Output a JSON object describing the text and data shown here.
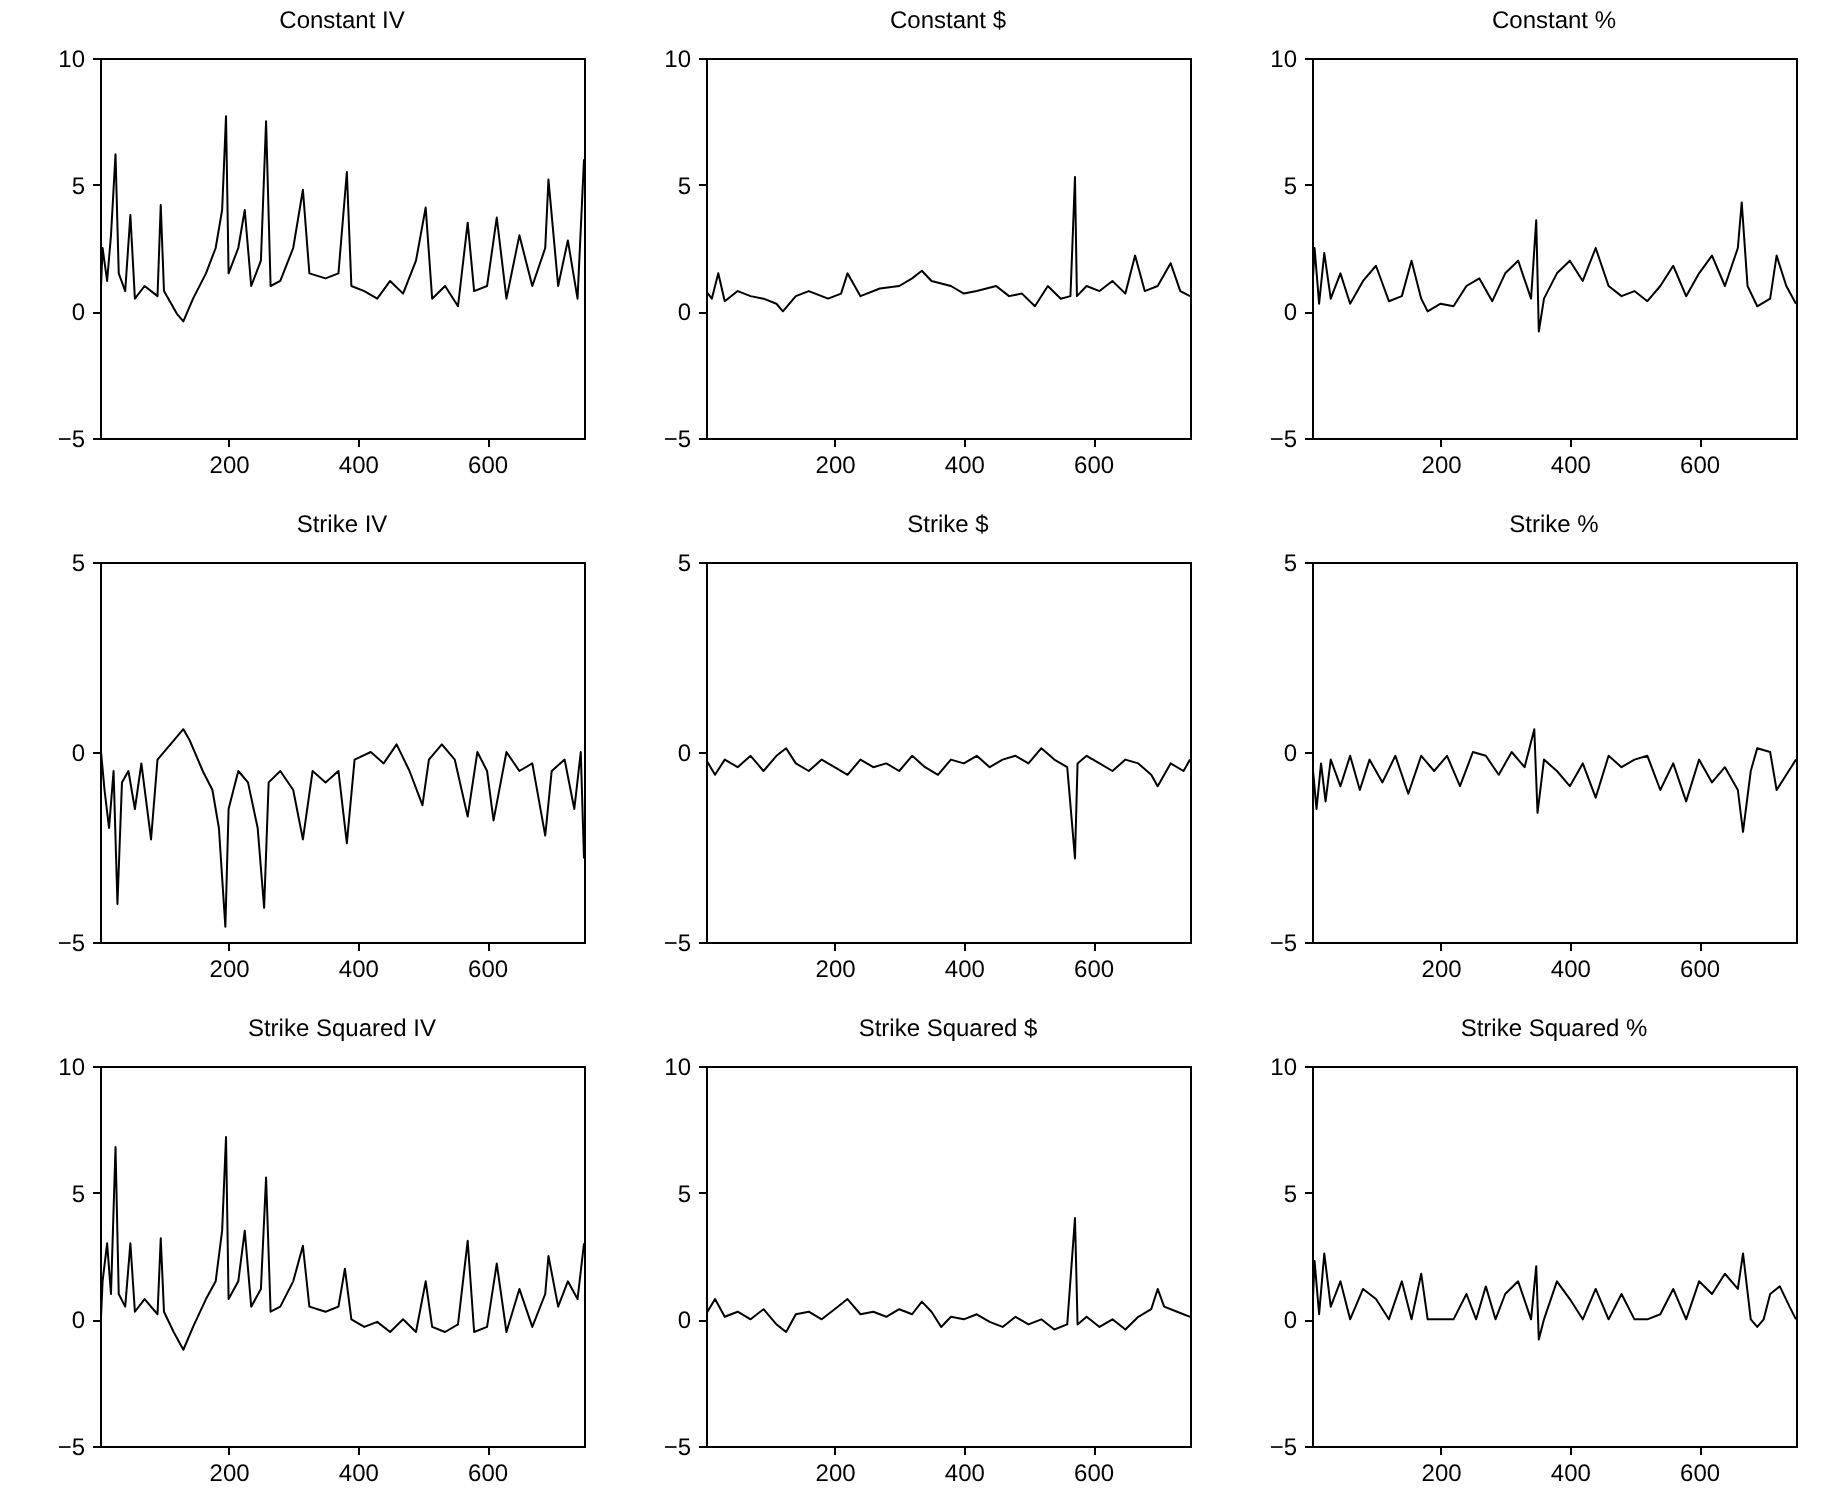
{
  "chart_data": [
    {
      "type": "line",
      "title": "Constant IV",
      "xlim": [
        1,
        750
      ],
      "xticks": [
        200,
        400,
        600
      ],
      "ylim": [
        -5,
        10
      ],
      "yticks": [
        -5,
        0,
        5,
        10
      ],
      "x": [
        1,
        5,
        12,
        18,
        25,
        30,
        40,
        48,
        55,
        70,
        90,
        95,
        100,
        120,
        130,
        145,
        165,
        180,
        190,
        196,
        200,
        215,
        225,
        235,
        250,
        258,
        265,
        280,
        300,
        315,
        325,
        350,
        370,
        383,
        390,
        410,
        430,
        450,
        470,
        490,
        505,
        515,
        535,
        555,
        570,
        580,
        600,
        615,
        630,
        650,
        670,
        690,
        695,
        710,
        725,
        740,
        750
      ],
      "series": [
        {
          "color": "#000000",
          "values": [
            0,
            2.5,
            1.2,
            3.0,
            6.2,
            1.5,
            0.8,
            3.8,
            0.5,
            1.0,
            0.6,
            4.2,
            0.8,
            -0.1,
            -0.4,
            0.5,
            1.5,
            2.5,
            4,
            7.7,
            1.5,
            2.5,
            4.0,
            1.0,
            2.0,
            7.5,
            1.0,
            1.2,
            2.5,
            4.8,
            1.5,
            1.3,
            1.5,
            5.5,
            1.0,
            0.8,
            0.5,
            1.2,
            0.7,
            2.0,
            4.1,
            0.5,
            1.0,
            0.2,
            3.5,
            0.8,
            1.0,
            3.7,
            0.5,
            3.0,
            1.0,
            2.5,
            5.2,
            1.0,
            2.8,
            0.5,
            6.0
          ]
        }
      ]
    },
    {
      "type": "line",
      "title": "Constant $",
      "xlim": [
        1,
        750
      ],
      "xticks": [
        200,
        400,
        600
      ],
      "ylim": [
        -5,
        10
      ],
      "yticks": [
        -5,
        0,
        5,
        10
      ],
      "x": [
        1,
        10,
        20,
        30,
        50,
        70,
        90,
        110,
        120,
        140,
        160,
        190,
        210,
        220,
        240,
        270,
        300,
        320,
        335,
        350,
        380,
        400,
        420,
        450,
        470,
        490,
        510,
        530,
        550,
        565,
        572,
        575,
        590,
        610,
        630,
        650,
        665,
        680,
        700,
        720,
        735,
        750
      ],
      "series": [
        {
          "color": "#000000",
          "values": [
            0.8,
            0.5,
            1.5,
            0.4,
            0.8,
            0.6,
            0.5,
            0.3,
            0.0,
            0.6,
            0.8,
            0.5,
            0.7,
            1.5,
            0.6,
            0.9,
            1.0,
            1.3,
            1.6,
            1.2,
            1.0,
            0.7,
            0.8,
            1.0,
            0.6,
            0.7,
            0.2,
            1.0,
            0.5,
            0.6,
            5.3,
            0.6,
            1.0,
            0.8,
            1.2,
            0.7,
            2.2,
            0.8,
            1.0,
            1.9,
            0.8,
            0.6
          ]
        }
      ]
    },
    {
      "type": "line",
      "title": "Constant %",
      "xlim": [
        1,
        750
      ],
      "xticks": [
        200,
        400,
        600
      ],
      "ylim": [
        -5,
        10
      ],
      "yticks": [
        -5,
        0,
        5,
        10
      ],
      "x": [
        1,
        5,
        12,
        20,
        30,
        45,
        60,
        80,
        100,
        120,
        140,
        155,
        170,
        180,
        200,
        220,
        240,
        260,
        280,
        300,
        320,
        340,
        348,
        352,
        360,
        380,
        400,
        420,
        440,
        460,
        480,
        500,
        520,
        540,
        560,
        580,
        600,
        620,
        640,
        660,
        666,
        675,
        690,
        710,
        720,
        735,
        750
      ],
      "series": [
        {
          "color": "#000000",
          "values": [
            0.6,
            2.5,
            0.3,
            2.3,
            0.5,
            1.5,
            0.3,
            1.2,
            1.8,
            0.4,
            0.6,
            2.0,
            0.5,
            0.0,
            0.3,
            0.2,
            1.0,
            1.3,
            0.4,
            1.5,
            2.0,
            0.5,
            3.6,
            -0.8,
            0.5,
            1.5,
            2.0,
            1.2,
            2.5,
            1.0,
            0.6,
            0.8,
            0.4,
            1.0,
            1.8,
            0.6,
            1.5,
            2.2,
            1.0,
            2.5,
            4.3,
            1.0,
            0.2,
            0.5,
            2.2,
            1.0,
            0.3
          ]
        }
      ]
    },
    {
      "type": "line",
      "title": "Strike IV",
      "xlim": [
        1,
        750
      ],
      "xticks": [
        200,
        400,
        600
      ],
      "ylim": [
        -5,
        5
      ],
      "yticks": [
        -5,
        0,
        5
      ],
      "x": [
        1,
        8,
        15,
        22,
        28,
        35,
        45,
        55,
        65,
        80,
        90,
        110,
        130,
        140,
        160,
        175,
        185,
        195,
        200,
        215,
        230,
        245,
        255,
        262,
        280,
        300,
        315,
        330,
        350,
        370,
        383,
        395,
        420,
        440,
        460,
        480,
        500,
        510,
        530,
        550,
        570,
        585,
        600,
        610,
        630,
        650,
        670,
        690,
        700,
        720,
        735,
        745,
        750
      ],
      "series": [
        {
          "color": "#000000",
          "values": [
            0.3,
            -1.0,
            -2.0,
            -0.5,
            -4.0,
            -0.8,
            -0.5,
            -1.5,
            -0.3,
            -2.3,
            -0.2,
            0.2,
            0.6,
            0.3,
            -0.5,
            -1.0,
            -2.0,
            -4.6,
            -1.5,
            -0.5,
            -0.8,
            -2.0,
            -4.1,
            -0.8,
            -0.5,
            -1.0,
            -2.3,
            -0.5,
            -0.8,
            -0.5,
            -2.4,
            -0.2,
            0.0,
            -0.3,
            0.2,
            -0.5,
            -1.4,
            -0.2,
            0.2,
            -0.2,
            -1.7,
            0.0,
            -0.5,
            -1.8,
            0.0,
            -0.5,
            -0.3,
            -2.2,
            -0.5,
            -0.2,
            -1.5,
            0.0,
            -2.8
          ]
        }
      ]
    },
    {
      "type": "line",
      "title": "Strike $",
      "xlim": [
        1,
        750
      ],
      "xticks": [
        200,
        400,
        600
      ],
      "ylim": [
        -5,
        5
      ],
      "yticks": [
        -5,
        0,
        5
      ],
      "x": [
        1,
        15,
        30,
        50,
        70,
        90,
        110,
        125,
        140,
        160,
        180,
        200,
        220,
        240,
        260,
        280,
        300,
        320,
        340,
        360,
        380,
        400,
        420,
        440,
        460,
        480,
        500,
        520,
        540,
        560,
        572,
        576,
        590,
        610,
        630,
        650,
        670,
        690,
        700,
        720,
        740,
        750
      ],
      "series": [
        {
          "color": "#000000",
          "values": [
            -0.2,
            -0.6,
            -0.2,
            -0.4,
            -0.1,
            -0.5,
            -0.1,
            0.1,
            -0.3,
            -0.5,
            -0.2,
            -0.4,
            -0.6,
            -0.2,
            -0.4,
            -0.3,
            -0.5,
            -0.1,
            -0.4,
            -0.6,
            -0.2,
            -0.3,
            -0.1,
            -0.4,
            -0.2,
            -0.1,
            -0.3,
            0.1,
            -0.2,
            -0.4,
            -2.8,
            -0.3,
            -0.1,
            -0.3,
            -0.5,
            -0.2,
            -0.3,
            -0.6,
            -0.9,
            -0.3,
            -0.5,
            -0.2
          ]
        }
      ]
    },
    {
      "type": "line",
      "title": "Strike %",
      "xlim": [
        1,
        750
      ],
      "xticks": [
        200,
        400,
        600
      ],
      "ylim": [
        -5,
        5
      ],
      "yticks": [
        -5,
        0,
        5
      ],
      "x": [
        1,
        8,
        15,
        22,
        30,
        45,
        60,
        75,
        90,
        110,
        130,
        150,
        170,
        190,
        210,
        230,
        250,
        270,
        290,
        310,
        330,
        345,
        350,
        360,
        380,
        400,
        420,
        440,
        460,
        480,
        500,
        520,
        540,
        560,
        580,
        600,
        620,
        640,
        660,
        668,
        680,
        690,
        710,
        720,
        735,
        750
      ],
      "series": [
        {
          "color": "#000000",
          "values": [
            -0.2,
            -1.5,
            -0.3,
            -1.3,
            -0.2,
            -0.9,
            -0.1,
            -1.0,
            -0.2,
            -0.8,
            -0.1,
            -1.1,
            -0.1,
            -0.5,
            -0.1,
            -0.9,
            0.0,
            -0.1,
            -0.6,
            0.0,
            -0.4,
            0.6,
            -1.6,
            -0.2,
            -0.5,
            -0.9,
            -0.3,
            -1.2,
            -0.1,
            -0.4,
            -0.2,
            -0.1,
            -1.0,
            -0.3,
            -1.3,
            -0.2,
            -0.8,
            -0.4,
            -1.0,
            -2.1,
            -0.5,
            0.1,
            0.0,
            -1.0,
            -0.6,
            -0.2
          ]
        }
      ]
    },
    {
      "type": "line",
      "title": "Strike Squared IV",
      "xlim": [
        1,
        750
      ],
      "xticks": [
        200,
        400,
        600
      ],
      "ylim": [
        -5,
        10
      ],
      "yticks": [
        -5,
        0,
        5,
        10
      ],
      "x": [
        1,
        5,
        12,
        18,
        25,
        30,
        40,
        48,
        55,
        70,
        90,
        95,
        100,
        115,
        130,
        145,
        165,
        180,
        190,
        196,
        200,
        215,
        225,
        235,
        250,
        258,
        265,
        280,
        300,
        315,
        325,
        350,
        370,
        380,
        390,
        410,
        430,
        450,
        470,
        490,
        505,
        515,
        535,
        555,
        570,
        580,
        600,
        615,
        630,
        650,
        670,
        690,
        695,
        710,
        725,
        740,
        750
      ],
      "series": [
        {
          "color": "#000000",
          "values": [
            -0.8,
            1.5,
            3.0,
            1.0,
            6.8,
            1.0,
            0.5,
            3.0,
            0.3,
            0.8,
            0.2,
            3.2,
            0.3,
            -0.5,
            -1.2,
            -0.3,
            0.8,
            1.5,
            3.5,
            7.2,
            0.8,
            1.5,
            3.5,
            0.5,
            1.2,
            5.6,
            0.3,
            0.5,
            1.5,
            2.9,
            0.5,
            0.3,
            0.5,
            2.0,
            0.0,
            -0.3,
            -0.1,
            -0.5,
            0.0,
            -0.5,
            1.5,
            -0.3,
            -0.5,
            -0.2,
            3.1,
            -0.5,
            -0.3,
            2.2,
            -0.5,
            1.2,
            -0.3,
            1.0,
            2.5,
            0.5,
            1.5,
            0.8,
            3.0
          ]
        }
      ]
    },
    {
      "type": "line",
      "title": "Strike Squared $",
      "xlim": [
        1,
        750
      ],
      "xticks": [
        200,
        400,
        600
      ],
      "ylim": [
        -5,
        10
      ],
      "yticks": [
        -5,
        0,
        5,
        10
      ],
      "x": [
        1,
        15,
        30,
        50,
        70,
        90,
        110,
        125,
        140,
        160,
        180,
        200,
        220,
        240,
        260,
        280,
        300,
        320,
        335,
        350,
        365,
        380,
        400,
        420,
        440,
        460,
        480,
        500,
        520,
        540,
        560,
        572,
        576,
        590,
        610,
        630,
        650,
        670,
        690,
        700,
        710,
        730,
        750
      ],
      "series": [
        {
          "color": "#000000",
          "values": [
            0.2,
            0.8,
            0.1,
            0.3,
            0.0,
            0.4,
            -0.2,
            -0.5,
            0.2,
            0.3,
            0.0,
            0.4,
            0.8,
            0.2,
            0.3,
            0.1,
            0.4,
            0.2,
            0.7,
            0.3,
            -0.3,
            0.1,
            0.0,
            0.2,
            -0.1,
            -0.3,
            0.1,
            -0.2,
            0.0,
            -0.4,
            -0.2,
            4.0,
            -0.2,
            0.1,
            -0.3,
            0.0,
            -0.4,
            0.1,
            0.4,
            1.2,
            0.5,
            0.3,
            0.1
          ]
        }
      ]
    },
    {
      "type": "line",
      "title": "Strike Squared %",
      "xlim": [
        1,
        750
      ],
      "xticks": [
        200,
        400,
        600
      ],
      "ylim": [
        -5,
        10
      ],
      "yticks": [
        -5,
        0,
        5,
        10
      ],
      "x": [
        1,
        5,
        12,
        20,
        30,
        45,
        60,
        80,
        100,
        120,
        140,
        155,
        170,
        180,
        200,
        220,
        240,
        255,
        270,
        285,
        300,
        320,
        340,
        348,
        352,
        360,
        380,
        400,
        420,
        440,
        460,
        480,
        500,
        520,
        540,
        560,
        580,
        600,
        620,
        640,
        660,
        668,
        680,
        690,
        700,
        710,
        725,
        740,
        750
      ],
      "series": [
        {
          "color": "#000000",
          "values": [
            0.0,
            2.3,
            0.2,
            2.6,
            0.5,
            1.5,
            0.0,
            1.2,
            0.8,
            0.0,
            1.5,
            0.0,
            1.8,
            0.0,
            0.0,
            0.0,
            1.0,
            0.0,
            1.3,
            0.0,
            1.0,
            1.5,
            0.0,
            2.1,
            -0.8,
            0.0,
            1.5,
            0.8,
            0.0,
            1.2,
            0.0,
            1.0,
            0.0,
            0.0,
            0.2,
            1.2,
            0.0,
            1.5,
            1.0,
            1.8,
            1.2,
            2.6,
            0.0,
            -0.3,
            0.0,
            1.0,
            1.3,
            0.5,
            0.0
          ]
        }
      ]
    }
  ]
}
